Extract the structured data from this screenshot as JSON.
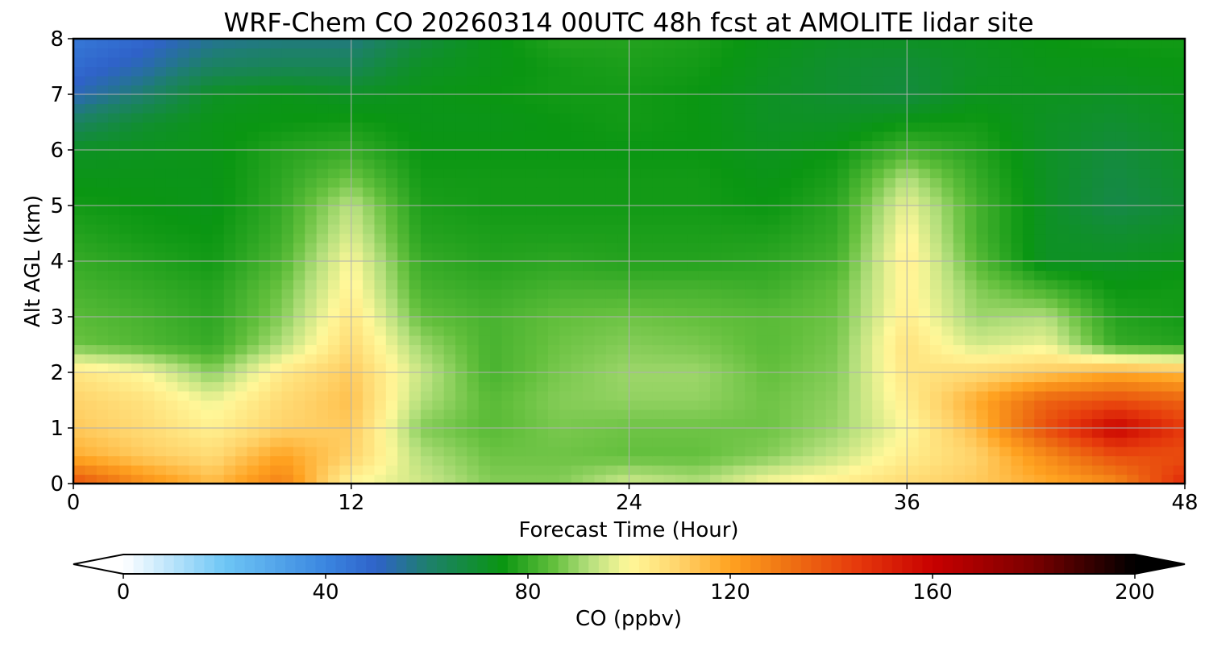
{
  "chart_data": {
    "type": "heatmap",
    "title": "WRF-Chem CO  20260314 00UTC 48h fcst at AMOLITE lidar site",
    "xlabel": "Forecast Time (Hour)",
    "ylabel": "Alt AGL (km)",
    "xlim": [
      0,
      48
    ],
    "ylim": [
      0,
      8
    ],
    "xticks": [
      "0",
      "12",
      "24",
      "36",
      "48"
    ],
    "yticks": [
      "0",
      "1",
      "2",
      "3",
      "4",
      "5",
      "6",
      "7",
      "8"
    ],
    "grid": true,
    "x": [
      0,
      3,
      6,
      9,
      12,
      15,
      18,
      21,
      24,
      27,
      30,
      33,
      36,
      39,
      42,
      45,
      48
    ],
    "y": [
      0,
      0.5,
      1,
      1.5,
      2,
      2.5,
      3,
      3.5,
      4,
      4.5,
      5,
      5.5,
      6,
      6.5,
      7,
      7.5,
      8
    ],
    "z": [
      [
        140,
        125,
        115,
        128,
        100,
        95,
        88,
        88,
        95,
        92,
        100,
        103,
        108,
        112,
        118,
        125,
        150
      ],
      [
        118,
        112,
        108,
        120,
        110,
        92,
        86,
        86,
        85,
        85,
        88,
        94,
        103,
        110,
        125,
        140,
        140
      ],
      [
        112,
        108,
        102,
        110,
        112,
        88,
        84,
        87,
        86,
        86,
        86,
        90,
        100,
        115,
        140,
        160,
        145
      ],
      [
        110,
        106,
        98,
        108,
        114,
        92,
        84,
        88,
        89,
        89,
        86,
        89,
        103,
        118,
        135,
        140,
        135
      ],
      [
        105,
        100,
        88,
        104,
        112,
        94,
        82,
        87,
        90,
        90,
        85,
        88,
        105,
        108,
        112,
        118,
        115
      ],
      [
        86,
        83,
        80,
        92,
        108,
        90,
        82,
        86,
        88,
        87,
        84,
        87,
        106,
        95,
        98,
        80,
        78
      ],
      [
        84,
        82,
        79,
        88,
        105,
        85,
        82,
        85,
        86,
        85,
        84,
        86,
        103,
        90,
        92,
        78,
        76
      ],
      [
        82,
        80,
        78,
        86,
        102,
        82,
        80,
        82,
        82,
        82,
        81,
        85,
        102,
        88,
        82,
        75,
        76
      ],
      [
        80,
        78,
        76,
        83,
        100,
        80,
        78,
        79,
        78,
        78,
        79,
        82,
        103,
        84,
        72,
        72,
        74
      ],
      [
        78,
        76,
        75,
        81,
        96,
        78,
        77,
        77,
        77,
        77,
        77,
        80,
        101,
        82,
        72,
        70,
        72
      ],
      [
        76,
        75,
        74,
        80,
        93,
        77,
        76,
        76,
        76,
        76,
        75,
        79,
        98,
        82,
        72,
        66,
        70
      ],
      [
        74,
        74,
        74,
        79,
        86,
        76,
        76,
        76,
        76,
        76,
        74,
        77,
        92,
        80,
        72,
        67,
        71
      ],
      [
        72,
        73,
        74,
        78,
        80,
        75,
        75,
        75,
        75,
        75,
        73,
        75,
        82,
        78,
        72,
        68,
        72
      ],
      [
        62,
        70,
        74,
        75,
        76,
        74,
        74,
        75,
        76,
        75,
        72,
        72,
        75,
        76,
        72,
        70,
        73
      ],
      [
        52,
        60,
        72,
        74,
        72,
        74,
        75,
        76,
        76,
        75,
        72,
        70,
        68,
        73,
        73,
        72,
        74
      ],
      [
        47,
        53,
        62,
        64,
        64,
        72,
        74,
        76,
        77,
        76,
        73,
        70,
        69,
        72,
        74,
        74,
        75
      ],
      [
        44,
        48,
        56,
        58,
        58,
        68,
        74,
        78,
        78,
        77,
        74,
        72,
        72,
        73,
        75,
        76,
        76
      ]
    ],
    "colorbar": {
      "label": "CO  (ppbv)",
      "min": 0,
      "max": 200,
      "extend": "both",
      "ticks": [
        "0",
        "40",
        "80",
        "120",
        "160",
        "200"
      ],
      "tick_values": [
        0,
        40,
        80,
        120,
        160,
        200
      ],
      "colormap": [
        [
          0,
          "#ffffff"
        ],
        [
          20,
          "#6ec6f5"
        ],
        [
          40,
          "#3a86e0"
        ],
        [
          50,
          "#2f62c9"
        ],
        [
          60,
          "#1e7f6e"
        ],
        [
          75,
          "#0a9612"
        ],
        [
          85,
          "#62bf3c"
        ],
        [
          92,
          "#b4df7c"
        ],
        [
          100,
          "#fff89a"
        ],
        [
          110,
          "#ffd36a"
        ],
        [
          120,
          "#ffa220"
        ],
        [
          130,
          "#f07814"
        ],
        [
          145,
          "#e63a0c"
        ],
        [
          160,
          "#c80000"
        ],
        [
          180,
          "#7a0000"
        ],
        [
          200,
          "#000000"
        ]
      ]
    }
  }
}
